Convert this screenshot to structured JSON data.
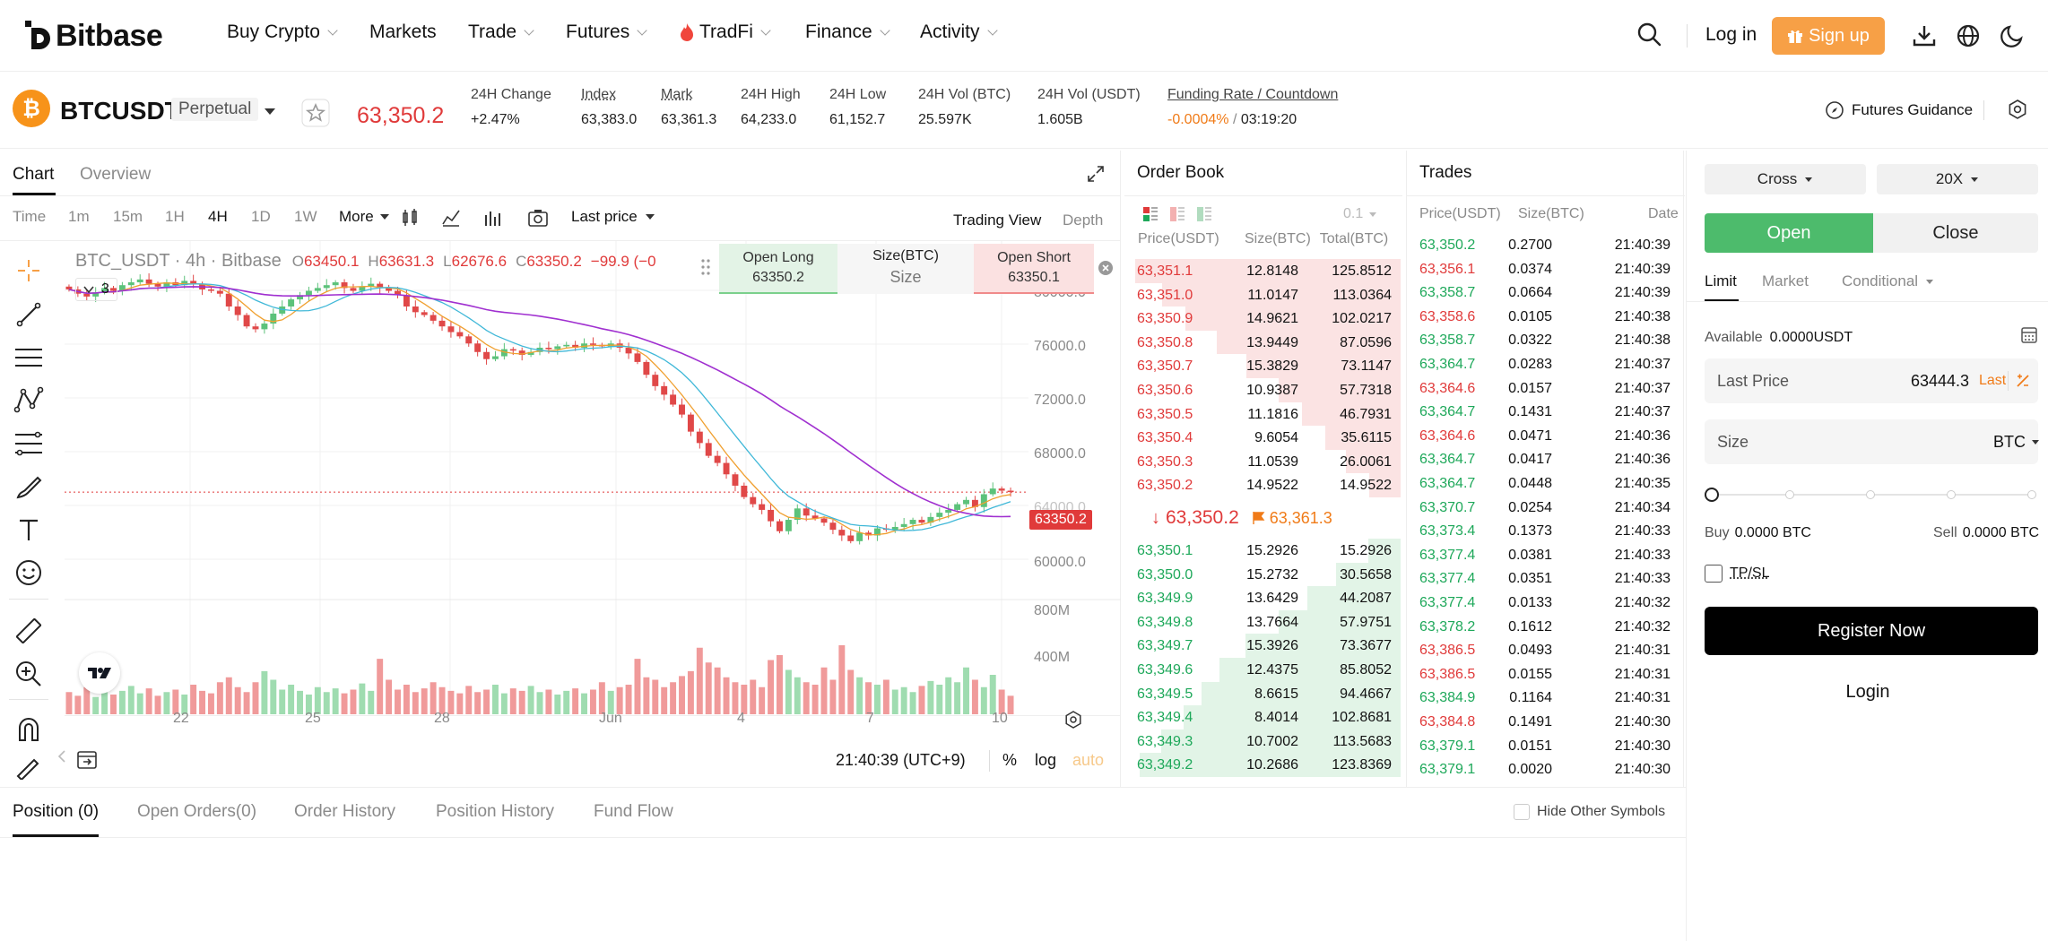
{
  "nav": {
    "logo": "Bitbase",
    "items": [
      {
        "label": "Buy Crypto",
        "caret": true
      },
      {
        "label": "Markets",
        "caret": false
      },
      {
        "label": "Trade",
        "caret": true
      },
      {
        "label": "Futures",
        "caret": true
      },
      {
        "label": "TradFi",
        "caret": true
      },
      {
        "label": "Finance",
        "caret": true
      },
      {
        "label": "Activity",
        "caret": true
      }
    ],
    "login": "Log in",
    "signup": "Sign up"
  },
  "ticker": {
    "symbol": "BTCUSDT",
    "type": "Perpetual",
    "last_price": "63,350.2",
    "stats": [
      {
        "label": "24H Change",
        "value": "+2.47%",
        "color": "green"
      },
      {
        "label": "Index",
        "value": "63,383.0"
      },
      {
        "label": "Mark",
        "value": "63,361.3"
      },
      {
        "label": "24H High",
        "value": "64,233.0"
      },
      {
        "label": "24H Low",
        "value": "61,152.7"
      },
      {
        "label": "24H Vol (BTC)",
        "value": "25.597K"
      },
      {
        "label": "24H Vol (USDT)",
        "value": "1.605B"
      }
    ],
    "funding_label": "Funding Rate / Countdown",
    "funding_rate": "-0.0004%",
    "funding_sep": " / ",
    "countdown": "03:19:20",
    "guidance": "Futures Guidance"
  },
  "chart": {
    "tabs": [
      "Chart",
      "Overview"
    ],
    "intervals": [
      "Time",
      "1m",
      "15m",
      "1H",
      "4H",
      "1D",
      "1W",
      "More"
    ],
    "active_interval": "4H",
    "price_type": "Last price",
    "views": [
      "Trading View",
      "Depth"
    ],
    "legend_title": "BTC_USDT · 4h · Bitbase",
    "ohlc": {
      "o_label": "O",
      "o": "63450.1",
      "h_label": "H",
      "h": "63631.3",
      "l_label": "L",
      "l": "62676.6",
      "c_label": "C",
      "c": "63350.2",
      "chg": "−99.9 (−0"
    },
    "indicator_count": "3",
    "quick": {
      "open_long": "Open Long",
      "open_long_price": "63350.2",
      "size_label": "Size(BTC)",
      "size_placeholder": "Size",
      "open_short": "Open Short",
      "open_short_price": "63350.1"
    },
    "y_ticks": [
      "80000.0",
      "76000.0",
      "72000.0",
      "68000.0",
      "64000.0",
      "60000.0"
    ],
    "vol_ticks": [
      "800M",
      "400M"
    ],
    "x_ticks": [
      "22",
      "25",
      "28",
      "Jun",
      "4",
      "7",
      "10"
    ],
    "price_tag": "63350.2",
    "clock": "21:40:39 (UTC+9)",
    "scale_opts": [
      "%",
      "log",
      "auto"
    ]
  },
  "chart_data": {
    "type": "candlestick",
    "ylim": [
      58000,
      81000
    ],
    "closes": [
      77600,
      77300,
      77100,
      77400,
      77700,
      77500,
      77900,
      78100,
      78300,
      78000,
      77800,
      78100,
      77900,
      78200,
      78000,
      77600,
      77500,
      77300,
      76400,
      75800,
      75000,
      74800,
      75200,
      75900,
      76400,
      76900,
      77200,
      77500,
      77700,
      77900,
      78100,
      77700,
      77500,
      77800,
      78000,
      77700,
      77500,
      77200,
      76400,
      76000,
      75800,
      75400,
      75000,
      74600,
      74300,
      73800,
      73200,
      72700,
      72900,
      73400,
      73300,
      73000,
      73200,
      73500,
      73400,
      73600,
      73700,
      73500,
      73800,
      73700,
      73600,
      73800,
      73500,
      73100,
      72500,
      71600,
      70800,
      70200,
      69500,
      68800,
      67600,
      66800,
      65900,
      65400,
      64600,
      63800,
      63000,
      62500,
      62100,
      61300,
      60600,
      61400,
      62200,
      61700,
      61500,
      61200,
      60700,
      60300,
      59900,
      60500,
      60300,
      60800,
      60700,
      60900,
      61100,
      61400,
      61200,
      61600,
      61900,
      62100,
      62500,
      62800,
      62300,
      63200,
      63600,
      63450,
      63350
    ],
    "volumes": [
      180,
      150,
      220,
      140,
      200,
      160,
      190,
      230,
      170,
      210,
      150,
      180,
      200,
      160,
      240,
      190,
      170,
      260,
      300,
      220,
      180,
      260,
      350,
      280,
      200,
      240,
      190,
      160,
      220,
      180,
      210,
      170,
      200,
      250,
      190,
      450,
      280,
      200,
      240,
      180,
      210,
      260,
      220,
      190,
      170,
      230,
      180,
      200,
      240,
      170,
      210,
      190,
      230,
      180,
      200,
      160,
      190,
      210,
      170,
      200,
      260,
      190,
      220,
      240,
      450,
      300,
      280,
      220,
      260,
      310,
      350,
      540,
      420,
      380,
      300,
      260,
      240,
      280,
      220,
      440,
      480,
      360,
      300,
      260,
      240,
      380,
      280,
      560,
      360,
      300,
      260,
      240,
      280,
      200,
      220,
      180,
      230,
      270,
      240,
      300,
      260,
      380,
      280,
      220,
      320,
      200,
      150
    ]
  },
  "orderbook": {
    "title": "Order Book",
    "precision": "0.1",
    "headers": [
      "Price(USDT)",
      "Size(BTC)",
      "Total(BTC)"
    ],
    "asks": [
      [
        "63,351.1",
        "12.8148",
        "125.8512"
      ],
      [
        "63,351.0",
        "11.0147",
        "113.0364"
      ],
      [
        "63,350.9",
        "14.9621",
        "102.0217"
      ],
      [
        "63,350.8",
        "13.9449",
        "87.0596"
      ],
      [
        "63,350.7",
        "15.3829",
        "73.1147"
      ],
      [
        "63,350.6",
        "10.9387",
        "57.7318"
      ],
      [
        "63,350.5",
        "11.1816",
        "46.7931"
      ],
      [
        "63,350.4",
        "9.6054",
        "35.6115"
      ],
      [
        "63,350.3",
        "11.0539",
        "26.0061"
      ],
      [
        "63,350.2",
        "14.9522",
        "14.9522"
      ]
    ],
    "mid_price": "63,350.2",
    "mark_price": "63,361.3",
    "bids": [
      [
        "63,350.1",
        "15.2926",
        "15.2926"
      ],
      [
        "63,350.0",
        "15.2732",
        "30.5658"
      ],
      [
        "63,349.9",
        "13.6429",
        "44.2087"
      ],
      [
        "63,349.8",
        "13.7664",
        "57.9751"
      ],
      [
        "63,349.7",
        "15.3926",
        "73.3677"
      ],
      [
        "63,349.6",
        "12.4375",
        "85.8052"
      ],
      [
        "63,349.5",
        "8.6615",
        "94.4667"
      ],
      [
        "63,349.4",
        "8.4014",
        "102.8681"
      ],
      [
        "63,349.3",
        "10.7002",
        "113.5683"
      ],
      [
        "63,349.2",
        "10.2686",
        "123.8369"
      ]
    ]
  },
  "trades": {
    "title": "Trades",
    "headers": [
      "Price(USDT)",
      "Size(BTC)",
      "Date"
    ],
    "rows": [
      [
        "63,350.2",
        "0.2700",
        "21:40:39",
        "green"
      ],
      [
        "63,356.1",
        "0.0374",
        "21:40:39",
        "red"
      ],
      [
        "63,358.7",
        "0.0664",
        "21:40:39",
        "green"
      ],
      [
        "63,358.6",
        "0.0105",
        "21:40:38",
        "red"
      ],
      [
        "63,358.7",
        "0.0322",
        "21:40:38",
        "green"
      ],
      [
        "63,364.7",
        "0.0283",
        "21:40:37",
        "green"
      ],
      [
        "63,364.6",
        "0.0157",
        "21:40:37",
        "red"
      ],
      [
        "63,364.7",
        "0.1431",
        "21:40:37",
        "green"
      ],
      [
        "63,364.6",
        "0.0471",
        "21:40:36",
        "red"
      ],
      [
        "63,364.7",
        "0.0417",
        "21:40:36",
        "green"
      ],
      [
        "63,364.7",
        "0.0448",
        "21:40:35",
        "green"
      ],
      [
        "63,370.7",
        "0.0254",
        "21:40:34",
        "green"
      ],
      [
        "63,373.4",
        "0.1373",
        "21:40:33",
        "green"
      ],
      [
        "63,377.4",
        "0.0381",
        "21:40:33",
        "green"
      ],
      [
        "63,377.4",
        "0.0351",
        "21:40:33",
        "green"
      ],
      [
        "63,377.4",
        "0.0133",
        "21:40:32",
        "green"
      ],
      [
        "63,378.2",
        "0.1612",
        "21:40:32",
        "green"
      ],
      [
        "63,386.5",
        "0.0493",
        "21:40:31",
        "red"
      ],
      [
        "63,386.5",
        "0.0155",
        "21:40:31",
        "red"
      ],
      [
        "63,384.9",
        "0.1164",
        "21:40:31",
        "green"
      ],
      [
        "63,384.8",
        "0.1491",
        "21:40:30",
        "red"
      ],
      [
        "63,379.1",
        "0.0151",
        "21:40:30",
        "green"
      ],
      [
        "63,379.1",
        "0.0020",
        "21:40:30",
        "green"
      ]
    ]
  },
  "order_form": {
    "margin_mode": "Cross",
    "leverage": "20X",
    "open": "Open",
    "close": "Close",
    "order_types": [
      "Limit",
      "Market",
      "Conditional"
    ],
    "available_label": "Available",
    "available_value": "0.0000USDT",
    "price_label": "Last Price",
    "price_value": "63444.3",
    "price_type": "Last",
    "size_label": "Size",
    "size_unit": "BTC",
    "slider_value": 0,
    "buy_label": "Buy",
    "buy_value": "0.0000 BTC",
    "sell_label": "Sell",
    "sell_value": "0.0000 BTC",
    "tpsl": "TP/SL",
    "register": "Register Now",
    "login": "Login"
  },
  "bottom": {
    "tabs": [
      "Position (0)",
      "Open Orders(0)",
      "Order History",
      "Position History",
      "Fund Flow"
    ],
    "hide_label": "Hide Other Symbols"
  }
}
